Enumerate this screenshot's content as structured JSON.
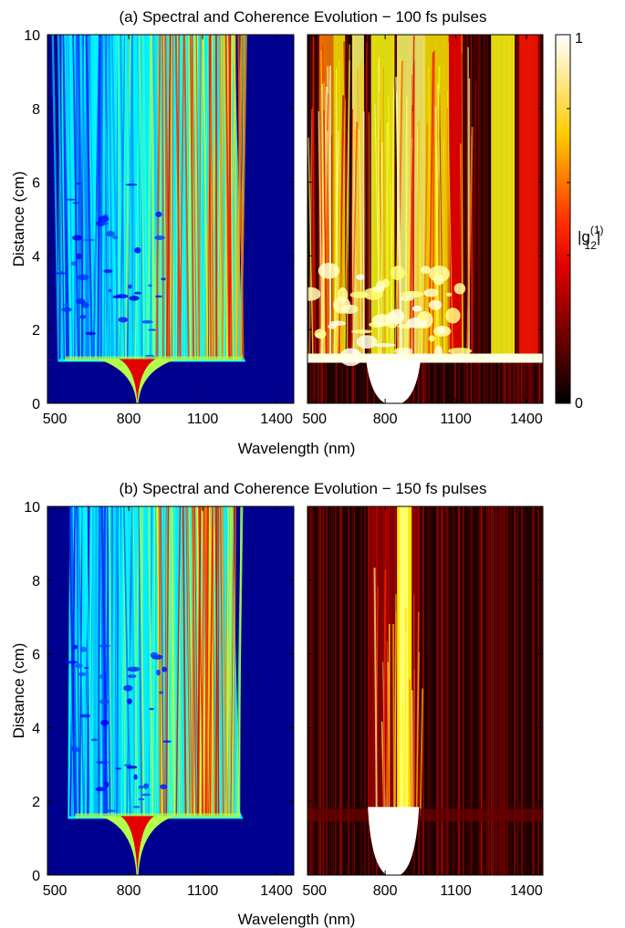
{
  "chart_data": [
    {
      "type": "heatmap",
      "title": "(a) Spectral and Coherence Evolution − 100 fs pulses",
      "panels": [
        {
          "name": "spectral-evolution",
          "colormap": "jet",
          "colorbar": false
        },
        {
          "name": "coherence-evolution",
          "colormap": "hot",
          "colorbar": true
        }
      ],
      "xlabel": "Wavelength (nm)",
      "ylabel": "Distance (cm)",
      "xlim": [
        470,
        1470
      ],
      "ylim": [
        0,
        10
      ],
      "xticks": [
        500,
        800,
        1100,
        1400
      ],
      "yticks": [
        0,
        2,
        4,
        6,
        8,
        10
      ],
      "pump_wavelength_nm": 835,
      "breakup_distance_cm": 1.2,
      "spectral_edges_nm": [
        520,
        1260
      ],
      "colorbar_label": "|g12(1)|",
      "colorbar_ticks": [
        0,
        1
      ],
      "colorbar_range": [
        0,
        1
      ]
    },
    {
      "type": "heatmap",
      "title": "(b) Spectral and Coherence Evolution − 150 fs pulses",
      "panels": [
        {
          "name": "spectral-evolution",
          "colormap": "jet",
          "colorbar": false
        },
        {
          "name": "coherence-evolution",
          "colormap": "hot",
          "colorbar": false
        }
      ],
      "xlabel": "Wavelength (nm)",
      "ylabel": "Distance (cm)",
      "xlim": [
        470,
        1470
      ],
      "ylim": [
        0,
        10
      ],
      "xticks": [
        500,
        800,
        1100,
        1400
      ],
      "yticks": [
        0,
        2,
        4,
        6,
        8,
        10
      ],
      "pump_wavelength_nm": 835,
      "breakup_distance_cm": 1.6,
      "spectral_edges_nm": [
        560,
        1250
      ]
    }
  ],
  "colorbar_label_parts": {
    "pre": "|g",
    "sup": "(1)",
    "sub": "12",
    "post": "|"
  }
}
